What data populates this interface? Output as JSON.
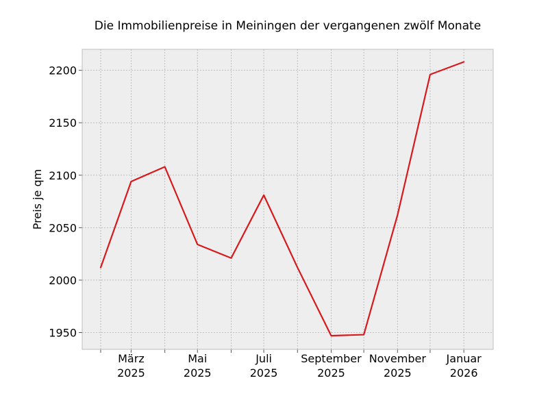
{
  "chart_data": {
    "type": "line",
    "title": "Die Immobilienpreise in Meiningen der vergangenen zwölf Monate",
    "xlabel": "",
    "ylabel": "Preis je qm",
    "x": [
      "2025-02",
      "2025-03",
      "2025-04",
      "2025-05",
      "2025-06",
      "2025-07",
      "2025-08",
      "2025-09",
      "2025-10",
      "2025-11",
      "2025-12",
      "2026-01"
    ],
    "series": [
      {
        "name": "",
        "values": [
          2012,
          2094,
          2108,
          2034,
          2021,
          2081,
          2012,
          1947,
          1948,
          2062,
          2196,
          2208
        ]
      }
    ],
    "xticks": [
      {
        "at": "2025-03",
        "line1": "März",
        "line2": "2025"
      },
      {
        "at": "2025-05",
        "line1": "Mai",
        "line2": "2025"
      },
      {
        "at": "2025-07",
        "line1": "Juli",
        "line2": "2025"
      },
      {
        "at": "2025-09",
        "line1": "September",
        "line2": "2025"
      },
      {
        "at": "2025-11",
        "line1": "November",
        "line2": "2025"
      },
      {
        "at": "2026-01",
        "line1": "Januar",
        "line2": "2026"
      }
    ],
    "yticks": [
      1950,
      2000,
      2050,
      2100,
      2150,
      2200
    ],
    "ylim": [
      1934,
      2220
    ],
    "xlim": [
      "2025-01-15",
      "2026-01-28"
    ],
    "grid": true,
    "style": "bmh",
    "colors": {
      "line": "#d7191c",
      "plot_background": "#eeeeee",
      "grid": "#b2b2b2",
      "frame": "#bcbcbc"
    }
  }
}
